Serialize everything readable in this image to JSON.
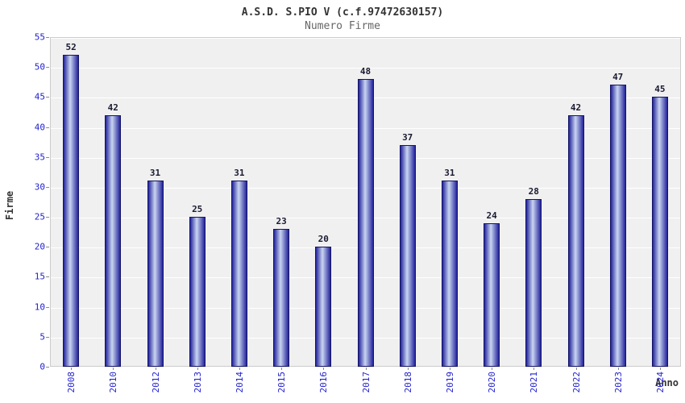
{
  "chart_data": {
    "type": "bar",
    "title": "A.S.D. S.PIO V (c.f.97472630157)",
    "subtitle": "Numero Firme",
    "xlabel": "Anno",
    "ylabel": "Firme",
    "categories": [
      "2008",
      "2010",
      "2012",
      "2013",
      "2014",
      "2015",
      "2016",
      "2017",
      "2018",
      "2019",
      "2020",
      "2021",
      "2022",
      "2023",
      "2024"
    ],
    "values": [
      52,
      42,
      31,
      25,
      31,
      23,
      20,
      48,
      37,
      31,
      24,
      28,
      42,
      47,
      45
    ],
    "ylim": [
      0,
      55
    ],
    "ytick_step": 5,
    "yticks": [
      0,
      5,
      10,
      15,
      20,
      25,
      30,
      35,
      40,
      45,
      50,
      55
    ],
    "grid": true,
    "legend": "none",
    "colors": {
      "bar_edge": "#141466",
      "bar_dark": "#23239b",
      "bar_light": "#c9d5f1",
      "tick_text": "#2222cc",
      "plot_bg": "#f0f0f0",
      "grid_line": "#ffffff",
      "value_label": "#1a1a33",
      "axis_title": "#333333",
      "subtitle_text": "#666666"
    }
  }
}
